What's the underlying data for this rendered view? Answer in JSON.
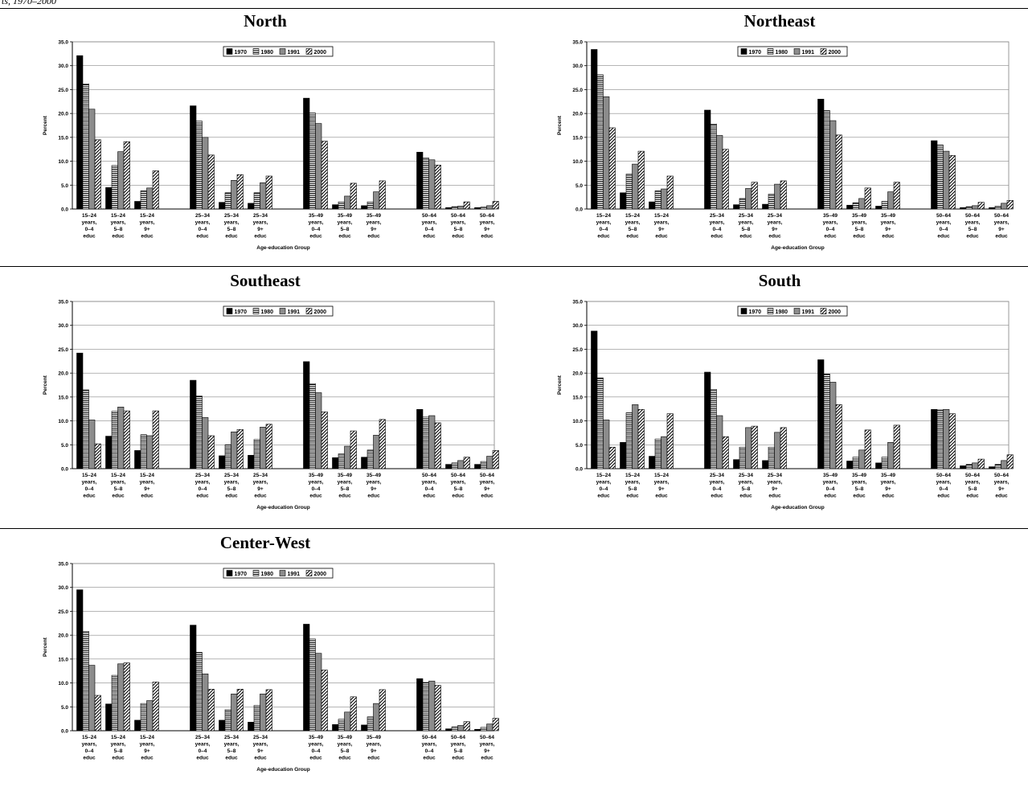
{
  "header_fragment": "ts, 1970–2000",
  "legend_labels": [
    "1970",
    "1980",
    "1991",
    "2000"
  ],
  "y_axis_label": "Percent",
  "x_axis_label": "Age-education Group",
  "y_ticks": [
    "0.0",
    "5.0",
    "10.0",
    "15.0",
    "20.0",
    "25.0",
    "30.0",
    "35.0"
  ],
  "category_groups": [
    [
      [
        "15–24",
        "years,",
        "0–4",
        "educ"
      ],
      [
        "15–24",
        "years,",
        "5–8",
        "educ"
      ],
      [
        "15–24",
        "years,",
        "9+",
        "educ"
      ]
    ],
    [
      [
        "25–34",
        "years,",
        "0–4",
        "educ"
      ],
      [
        "25–34",
        "years,",
        "5–8",
        "educ"
      ],
      [
        "25–34",
        "years,",
        "9+",
        "educ"
      ]
    ],
    [
      [
        "35–49",
        "years,",
        "0–4",
        "educ"
      ],
      [
        "35–49",
        "years,",
        "5–8",
        "educ"
      ],
      [
        "35–49",
        "years,",
        "9+",
        "educ"
      ]
    ],
    [
      [
        "50–64",
        "years,",
        "0–4",
        "educ"
      ],
      [
        "50–64",
        "years,",
        "5–8",
        "educ"
      ],
      [
        "50–64",
        "years,",
        "9+",
        "educ"
      ]
    ]
  ],
  "chart_data": [
    {
      "type": "bar",
      "title": "North",
      "xlabel": "Age-education Group",
      "ylabel": "Percent",
      "ylim": [
        0,
        35
      ],
      "grid": true,
      "legend_position": "top-center",
      "categories": [
        "15–24 years, 0–4 educ",
        "15–24 years, 5–8 educ",
        "15–24 years, 9+ educ",
        "25–34 years, 0–4 educ",
        "25–34 years, 5–8 educ",
        "25–34 years, 9+ educ",
        "35–49 years, 0–4 educ",
        "35–49 years, 5–8 educ",
        "35–49 years, 9+ educ",
        "50–64 years, 0–4 educ",
        "50–64 years, 5–8 educ",
        "50–64 years, 9+ educ"
      ],
      "series": [
        {
          "name": "1970",
          "values": [
            32.1,
            4.5,
            1.6,
            21.6,
            1.4,
            1.2,
            23.2,
            0.9,
            0.7,
            11.9,
            0.3,
            0.3
          ]
        },
        {
          "name": "1980",
          "values": [
            26.2,
            9.1,
            3.8,
            18.4,
            3.4,
            3.4,
            20.1,
            1.5,
            1.5,
            10.7,
            0.5,
            0.4
          ]
        },
        {
          "name": "1991",
          "values": [
            20.9,
            12.0,
            4.4,
            15.0,
            6.0,
            5.5,
            17.9,
            2.7,
            3.6,
            10.3,
            0.6,
            0.7
          ]
        },
        {
          "name": "2000",
          "values": [
            14.5,
            14.1,
            8.0,
            11.3,
            7.2,
            6.9,
            14.2,
            5.4,
            5.9,
            9.2,
            1.5,
            1.6
          ]
        }
      ]
    },
    {
      "type": "bar",
      "title": "Northeast",
      "xlabel": "Age-education Group",
      "ylabel": "Percent",
      "ylim": [
        0,
        35
      ],
      "grid": true,
      "legend_position": "top-center",
      "categories": [
        "15–24 years, 0–4 educ",
        "15–24 years, 5–8 educ",
        "15–24 years, 9+ educ",
        "25–34 years, 0–4 educ",
        "25–34 years, 5–8 educ",
        "25–34 years, 9+ educ",
        "35–49 years, 0–4 educ",
        "35–49 years, 5–8 educ",
        "35–49 years, 9+ educ",
        "50–64 years, 0–4 educ",
        "50–64 years, 5–8 educ",
        "50–64 years, 9+ educ"
      ],
      "series": [
        {
          "name": "1970",
          "values": [
            33.4,
            3.4,
            1.5,
            20.7,
            0.9,
            1.0,
            23.0,
            0.8,
            0.6,
            14.3,
            0.3,
            0.3
          ]
        },
        {
          "name": "1980",
          "values": [
            28.1,
            7.3,
            3.8,
            17.8,
            2.2,
            3.1,
            20.6,
            1.3,
            1.6,
            13.4,
            0.5,
            0.6
          ]
        },
        {
          "name": "1991",
          "values": [
            23.5,
            9.4,
            4.2,
            15.4,
            4.3,
            5.2,
            18.5,
            2.2,
            3.6,
            12.1,
            0.7,
            1.2
          ]
        },
        {
          "name": "2000",
          "values": [
            17.0,
            12.1,
            6.9,
            12.5,
            5.6,
            5.9,
            15.5,
            4.4,
            5.6,
            11.2,
            1.4,
            1.8
          ]
        }
      ]
    },
    {
      "type": "bar",
      "title": "Southeast",
      "xlabel": "Age-education Group",
      "ylabel": "Percent",
      "ylim": [
        0,
        35
      ],
      "grid": true,
      "legend_position": "top-center",
      "categories": [
        "15–24 years, 0–4 educ",
        "15–24 years, 5–8 educ",
        "15–24 years, 9+ educ",
        "25–34 years, 0–4 educ",
        "25–34 years, 5–8 educ",
        "25–34 years, 9+ educ",
        "35–49 years, 0–4 educ",
        "35–49 years, 5–8 educ",
        "35–49 years, 9+ educ",
        "50–64 years, 0–4 educ",
        "50–64 years, 5–8 educ",
        "50–64 years, 9+ educ"
      ],
      "series": [
        {
          "name": "1970",
          "values": [
            24.2,
            6.8,
            3.8,
            18.5,
            2.7,
            2.8,
            22.4,
            2.3,
            2.4,
            12.4,
            0.9,
            0.9
          ]
        },
        {
          "name": "1980",
          "values": [
            16.5,
            12.0,
            7.1,
            15.2,
            5.0,
            6.1,
            17.8,
            3.1,
            3.9,
            10.8,
            1.2,
            1.5
          ]
        },
        {
          "name": "1991",
          "values": [
            10.2,
            12.9,
            6.9,
            10.7,
            7.7,
            8.7,
            15.9,
            4.7,
            7.0,
            11.1,
            1.7,
            2.6
          ]
        },
        {
          "name": "2000",
          "values": [
            5.2,
            12.1,
            12.1,
            6.9,
            8.2,
            9.3,
            11.9,
            7.9,
            10.3,
            9.6,
            2.4,
            3.8
          ]
        }
      ]
    },
    {
      "type": "bar",
      "title": "South",
      "xlabel": "Age-education Group",
      "ylabel": "Percent",
      "ylim": [
        0,
        35
      ],
      "grid": true,
      "legend_position": "top-center",
      "categories": [
        "15–24 years, 0–4 educ",
        "15–24 years, 5–8 educ",
        "15–24 years, 9+ educ",
        "25–34 years, 0–4 educ",
        "25–34 years, 5–8 educ",
        "25–34 years, 9+ educ",
        "35–49 years, 0–4 educ",
        "35–49 years, 5–8 educ",
        "35–49 years, 9+ educ",
        "50–64 years, 0–4 educ",
        "50–64 years, 5–8 educ",
        "50–64 years, 9+ educ"
      ],
      "series": [
        {
          "name": "1970",
          "values": [
            28.8,
            5.5,
            2.6,
            20.2,
            1.9,
            1.7,
            22.8,
            1.6,
            1.2,
            12.4,
            0.6,
            0.4
          ]
        },
        {
          "name": "1980",
          "values": [
            19.0,
            11.7,
            6.2,
            16.6,
            4.5,
            4.5,
            19.8,
            2.4,
            2.4,
            12.3,
            0.9,
            0.9
          ]
        },
        {
          "name": "1991",
          "values": [
            10.2,
            13.4,
            6.7,
            11.1,
            8.6,
            7.6,
            18.1,
            3.9,
            5.5,
            12.4,
            1.2,
            1.7
          ]
        },
        {
          "name": "2000",
          "values": [
            4.5,
            12.4,
            11.5,
            6.7,
            8.9,
            8.6,
            13.4,
            8.1,
            9.1,
            11.5,
            2.0,
            2.9
          ]
        }
      ]
    },
    {
      "type": "bar",
      "title": "Center-West",
      "xlabel": "Age-education Group",
      "ylabel": "Percent",
      "ylim": [
        0,
        35
      ],
      "grid": true,
      "legend_position": "top-center",
      "categories": [
        "15–24 years, 0–4 educ",
        "15–24 years, 5–8 educ",
        "15–24 years, 9+ educ",
        "25–34 years, 0–4 educ",
        "25–34 years, 5–8 educ",
        "25–34 years, 9+ educ",
        "35–49 years, 0–4 educ",
        "35–49 years, 5–8 educ",
        "35–49 years, 9+ educ",
        "50–64 years, 0–4 educ",
        "50–64 years, 5–8 educ",
        "50–64 years, 9+ educ"
      ],
      "series": [
        {
          "name": "1970",
          "values": [
            29.5,
            5.6,
            2.2,
            22.1,
            2.2,
            1.8,
            22.3,
            1.3,
            1.2,
            10.9,
            0.4,
            0.3
          ]
        },
        {
          "name": "1980",
          "values": [
            20.8,
            11.6,
            5.7,
            16.4,
            4.4,
            5.3,
            19.2,
            2.4,
            2.9,
            10.1,
            0.8,
            0.7
          ]
        },
        {
          "name": "1991",
          "values": [
            13.7,
            14.0,
            6.3,
            11.9,
            7.7,
            7.7,
            16.2,
            3.9,
            5.7,
            10.4,
            1.1,
            1.4
          ]
        },
        {
          "name": "2000",
          "values": [
            7.4,
            14.2,
            10.2,
            8.7,
            8.7,
            8.6,
            12.7,
            7.1,
            8.6,
            9.5,
            1.9,
            2.6
          ]
        }
      ]
    }
  ]
}
